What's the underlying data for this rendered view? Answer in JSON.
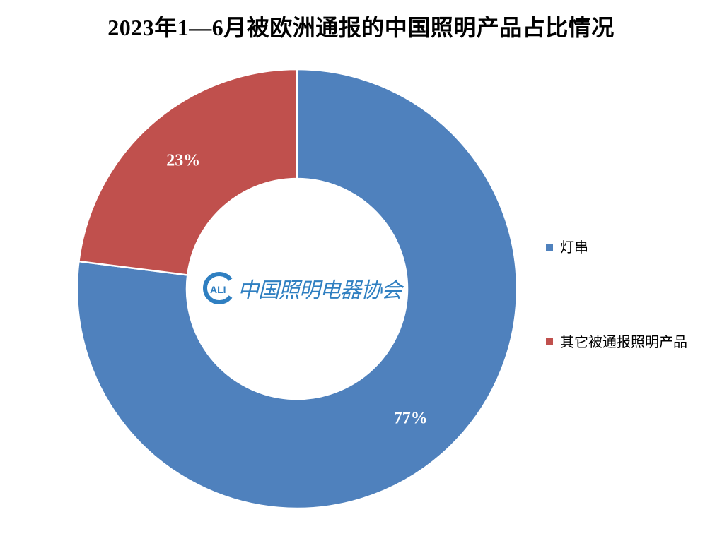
{
  "chart_data": {
    "type": "pie",
    "donut": true,
    "title": "2023年1—6月被欧洲通报的中国照明产品占比情况",
    "slices": [
      {
        "name": "灯串",
        "value": 77,
        "label": "77%",
        "color": "#4f81bd"
      },
      {
        "name": "其它被通报照明产品",
        "value": 23,
        "label": "23%",
        "color": "#c0504d"
      }
    ],
    "legend_position": "right"
  },
  "watermark": {
    "logo_letters": "CALI",
    "text": "中国照明电器协会",
    "color": "#2f7fc1"
  }
}
